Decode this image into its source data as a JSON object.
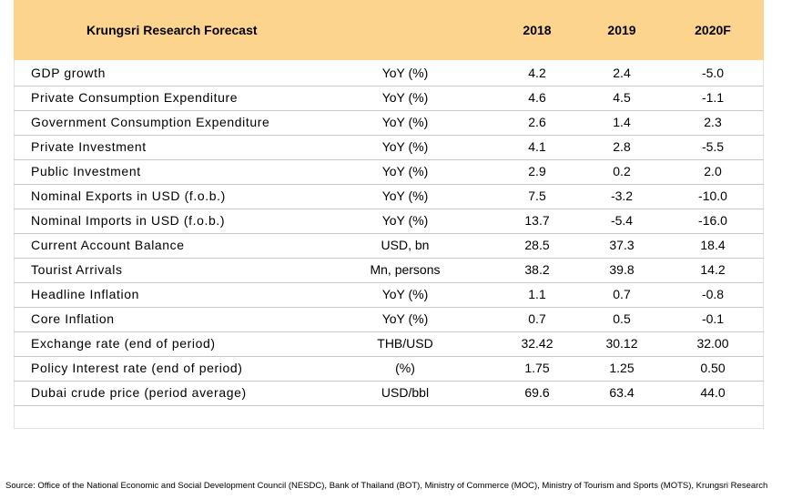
{
  "table": {
    "header": {
      "title": "Krungsri Research Forecast",
      "columns": [
        "2018",
        "2019",
        "2020F"
      ]
    },
    "rows": [
      [
        "GDP growth",
        "YoY (%)",
        "4.2",
        "2.4",
        "-5.0"
      ],
      [
        "Private Consumption Expenditure",
        "YoY (%)",
        "4.6",
        "4.5",
        "-1.1"
      ],
      [
        "Government Consumption Expenditure",
        "YoY (%)",
        "2.6",
        "1.4",
        "2.3"
      ],
      [
        "Private Investment",
        "YoY (%)",
        "4.1",
        "2.8",
        "-5.5"
      ],
      [
        "Public Investment",
        "YoY (%)",
        "2.9",
        "0.2",
        "2.0"
      ],
      [
        "Nominal Exports in USD (f.o.b.)",
        "YoY (%)",
        "7.5",
        "-3.2",
        "-10.0"
      ],
      [
        "Nominal Imports in USD (f.o.b.)",
        "YoY (%)",
        "13.7",
        "-5.4",
        "-16.0"
      ],
      [
        "Current Account Balance",
        "USD, bn",
        "28.5",
        "37.3",
        "18.4"
      ],
      [
        "Tourist Arrivals",
        "Mn, persons",
        "38.2",
        "39.8",
        "14.2"
      ],
      [
        "Headline Inflation",
        "YoY (%)",
        "1.1",
        "0.7",
        "-0.8"
      ],
      [
        "Core Inflation",
        "YoY (%)",
        "0.7",
        "0.5",
        "-0.1"
      ],
      [
        "Exchange rate (end of period)",
        "THB/USD",
        "32.42",
        "30.12",
        "32.00"
      ],
      [
        "Policy Interest rate (end of period)",
        "(%)",
        "1.75",
        "1.25",
        "0.50"
      ],
      [
        "Dubai crude price (period average)",
        "USD/bbl",
        "69.6",
        "63.4",
        "44.0"
      ]
    ]
  },
  "source": "Source: Office of the National Economic and Social Development Council (NESDC), Bank of Thailand (BOT), Ministry of Commerce (MOC), Ministry of Tourism and Sports (MOTS), Krungsri Research"
}
